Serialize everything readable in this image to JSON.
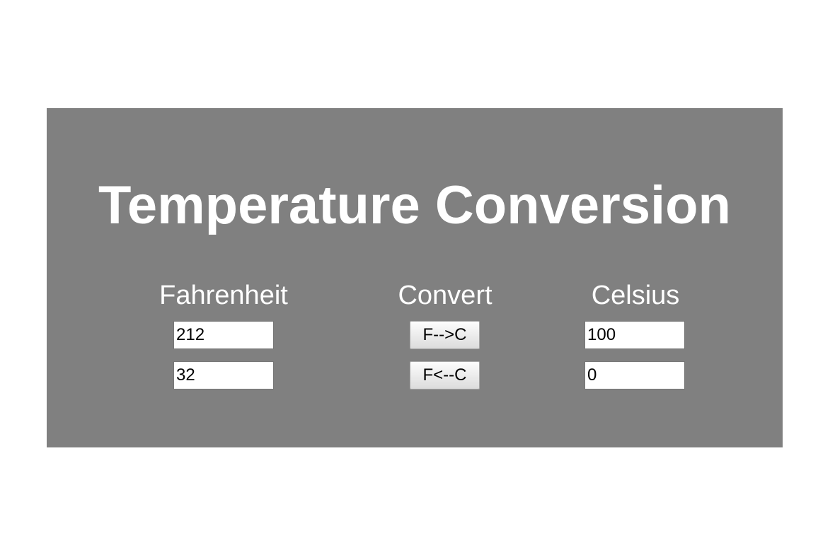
{
  "title": "Temperature Conversion",
  "headers": {
    "fahrenheit": "Fahrenheit",
    "convert": "Convert",
    "celsius": "Celsius"
  },
  "rows": [
    {
      "fahrenheit_value": "212",
      "button_label": "F-->C",
      "celsius_value": "100"
    },
    {
      "fahrenheit_value": "32",
      "button_label": "F<--C",
      "celsius_value": "0"
    }
  ],
  "colors": {
    "panel_background": "#808080",
    "page_background": "#ffffff",
    "text": "#ffffff"
  }
}
